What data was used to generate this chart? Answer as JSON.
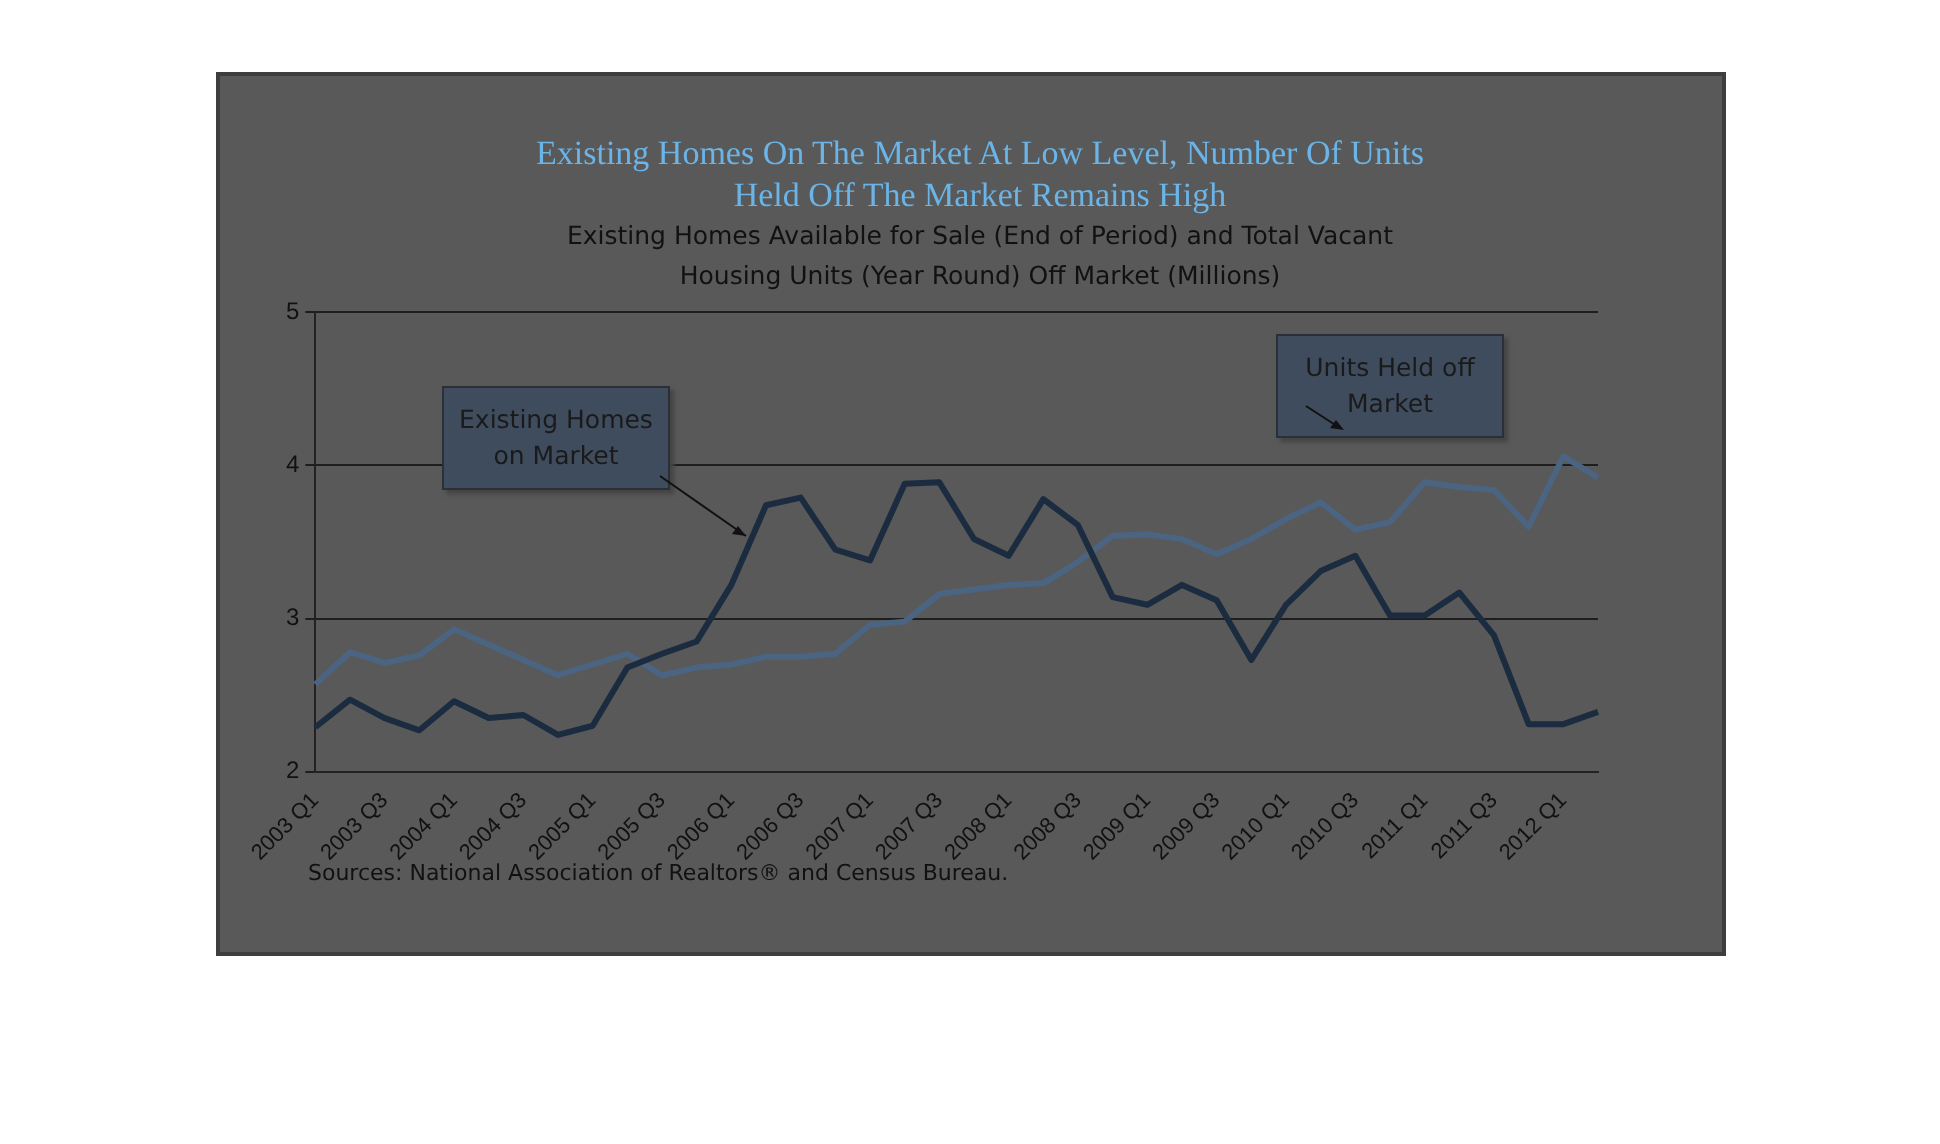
{
  "chart_data": {
    "type": "line",
    "title": "Existing Homes On The Market At Low Level, Number Of Units Held Off The Market Remains High",
    "subtitle": "Existing Homes Available for Sale (End of Period) and Total Vacant Housing Units (Year Round) Off Market (Millions)",
    "categories": [
      "2003 Q1",
      null,
      "2003 Q3",
      null,
      "2004 Q1",
      null,
      "2004 Q3",
      null,
      "2005 Q1",
      null,
      "2005 Q3",
      null,
      "2006 Q1",
      null,
      "2006 Q3",
      null,
      "2007 Q1",
      null,
      "2007 Q3",
      null,
      "2008 Q1",
      null,
      "2008 Q3",
      null,
      "2009 Q1",
      null,
      "2009 Q3",
      null,
      "2010 Q1",
      null,
      "2010 Q3",
      null,
      "2011 Q1",
      null,
      "2011 Q3",
      null,
      "2012 Q1",
      null
    ],
    "series": [
      {
        "color": "#1b2b40",
        "values": [
          2.29,
          2.47,
          2.35,
          2.27,
          2.46,
          2.35,
          2.37,
          2.24,
          2.3,
          2.68,
          2.77,
          2.85,
          3.22,
          3.74,
          3.79,
          3.45,
          3.38,
          3.88,
          3.89,
          3.52,
          3.41,
          3.78,
          3.61,
          3.14,
          3.09,
          3.22,
          3.12,
          2.73,
          3.09,
          3.31,
          3.41,
          3.02,
          3.02,
          3.17,
          2.89,
          2.31,
          2.31,
          2.39
        ]
      },
      {
        "color": "#4b6482",
        "values": [
          2.57,
          2.78,
          2.71,
          2.76,
          2.93,
          2.83,
          2.73,
          2.63,
          2.7,
          2.77,
          2.63,
          2.68,
          2.7,
          2.75,
          2.75,
          2.77,
          2.96,
          2.98,
          3.16,
          3.19,
          3.22,
          3.23,
          3.37,
          3.54,
          3.55,
          3.52,
          3.42,
          3.52,
          3.65,
          3.76,
          3.58,
          3.63,
          3.89,
          3.86,
          3.84,
          3.6,
          4.06,
          3.92
        ]
      }
    ],
    "ylim": [
      2,
      5
    ],
    "yticks": [
      2,
      3,
      4,
      5
    ],
    "grid": "y",
    "legend": false,
    "marker": "none",
    "line_style": "solid",
    "annotations": [
      "Existing Homes on Market",
      "Units Held off Market",
      "Sources: National Association of Realtors® and Census Bureau."
    ]
  }
}
